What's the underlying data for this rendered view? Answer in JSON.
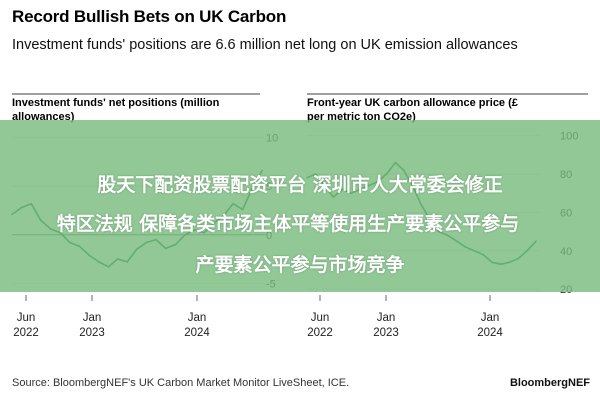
{
  "header": {
    "title": "Record Bullish Bets on UK Carbon",
    "subtitle": "Investment funds' positions are 6.6 million net long on UK emission allowances"
  },
  "overlay": {
    "line1": "股天下配资股票配资平台 深圳市人大常委会修正",
    "line2": "特区法规 保障各类市场主体平等使用生产要素公平参与",
    "line3": "产要素公平参与市场竞争"
  },
  "footer": {
    "source": "Source: BloombergNEF's UK Carbon Market Monitor LiveSheet, ICE.",
    "brand": "BloombergNEF"
  },
  "colors": {
    "series": "#1f7a3f",
    "banner": "#76ba7c"
  },
  "chart_data": [
    {
      "type": "line",
      "title": "Investment funds' net positions (million allowances)",
      "x_ticks": [
        {
          "label": "Jun",
          "sublabel": "2022"
        },
        {
          "label": "Jan",
          "sublabel": "2023"
        },
        {
          "label": "Jan",
          "sublabel": "2024"
        }
      ],
      "y_ticks": [
        "10",
        "5",
        "0",
        "-5"
      ],
      "ylim": [
        -6,
        11
      ],
      "series": [
        {
          "x": [
            "2022-04-01",
            "2022-05-01",
            "2022-06-01",
            "2022-07-01",
            "2022-08-01",
            "2022-09-01",
            "2022-10-01",
            "2022-11-01",
            "2022-12-01",
            "2023-01-01",
            "2023-02-01",
            "2023-03-01",
            "2023-04-01",
            "2023-05-01",
            "2023-06-01",
            "2023-07-01",
            "2023-08-01",
            "2023-09-01",
            "2023-10-01",
            "2023-11-01",
            "2023-12-01",
            "2024-01-01",
            "2024-02-01",
            "2024-03-01",
            "2024-04-01",
            "2024-05-01",
            "2024-06-01"
          ],
          "values": [
            2.1,
            2.8,
            3.2,
            1.5,
            0.6,
            0.2,
            -0.8,
            -1.2,
            -2.1,
            -2.8,
            -3.3,
            -2.5,
            -2.8,
            -1.5,
            -0.8,
            -0.5,
            -1.4,
            -1.0,
            0.0,
            0.5,
            0.2,
            1.2,
            2.0,
            3.2,
            2.6,
            4.8,
            6.6
          ]
        }
      ]
    },
    {
      "type": "line",
      "title": "Front-year UK carbon allowance price (£ per metric ton CO2e)",
      "x_ticks": [
        {
          "label": "Jun",
          "sublabel": "2022"
        },
        {
          "label": "Jan",
          "sublabel": "2023"
        },
        {
          "label": "Jan",
          "sublabel": "2024"
        }
      ],
      "y_ticks": [
        "100",
        "80",
        "60",
        "40",
        "20"
      ],
      "ylim": [
        18,
        104
      ],
      "series": [
        {
          "x": [
            "2022-04-01",
            "2022-05-01",
            "2022-06-01",
            "2022-07-01",
            "2022-08-01",
            "2022-09-01",
            "2022-10-01",
            "2022-11-01",
            "2022-12-01",
            "2023-01-01",
            "2023-02-01",
            "2023-03-01",
            "2023-04-01",
            "2023-05-01",
            "2023-06-01",
            "2023-07-01",
            "2023-08-01",
            "2023-09-01",
            "2023-10-01",
            "2023-11-01",
            "2023-12-01",
            "2024-01-01",
            "2024-02-01",
            "2024-03-01",
            "2024-04-01",
            "2024-05-01",
            "2024-06-01"
          ],
          "values": [
            78,
            80,
            74,
            68,
            72,
            70,
            72,
            74,
            76,
            80,
            86,
            82,
            74,
            64,
            56,
            50,
            48,
            45,
            42,
            40,
            38,
            34,
            33,
            34,
            36,
            40,
            45
          ]
        }
      ]
    }
  ]
}
